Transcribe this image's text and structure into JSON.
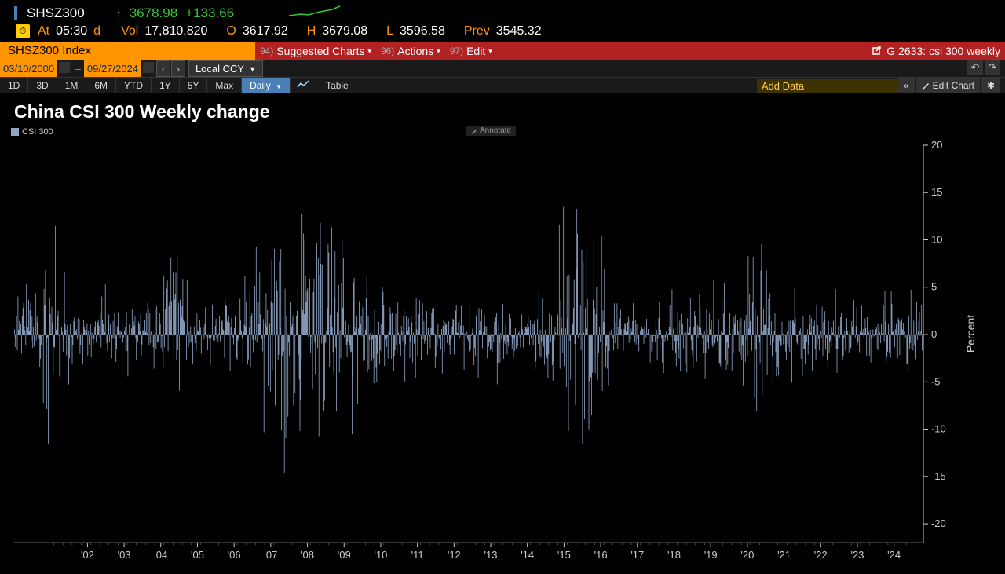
{
  "ticker": {
    "symbol": "SHSZ300",
    "arrow": "↑",
    "price": "3678.98",
    "change": "+133.66"
  },
  "quote": {
    "at_label": "At",
    "time": "05:30",
    "d": "d",
    "vol_label": "Vol",
    "vol": "17,810,820",
    "o_label": "O",
    "open": "3617.92",
    "h_label": "H",
    "high": "3679.08",
    "l_label": "L",
    "low": "3596.58",
    "prev_label": "Prev",
    "prev": "3545.32"
  },
  "index_bar": {
    "label": "SHSZ300 Index",
    "items": [
      {
        "num": "94)",
        "label": "Suggested Charts"
      },
      {
        "num": "96)",
        "label": "Actions"
      },
      {
        "num": "97)",
        "label": "Edit"
      }
    ],
    "right": "G 2633: csi 300 weekly"
  },
  "date_range": {
    "start": "03/10/2000",
    "end": "09/27/2024",
    "currency": "Local CCY"
  },
  "periods": [
    "1D",
    "3D",
    "1M",
    "6M",
    "YTD",
    "1Y",
    "5Y",
    "Max"
  ],
  "interval": "Daily",
  "table_label": "Table",
  "add_data": "Add Data",
  "edit_chart": "Edit Chart",
  "chart": {
    "title": "China CSI 300 Weekly change",
    "legend": "CSI 300",
    "annotate": "Annotate",
    "type": "bar",
    "y_label": "Percent",
    "ymin": -22,
    "ymax": 20,
    "ytick_step": 5,
    "yticks": [
      20,
      15,
      10,
      5,
      0,
      -5,
      -10,
      -15,
      -20
    ],
    "xtick_labels": [
      "'02",
      "'03",
      "'04",
      "'05",
      "'06",
      "'07",
      "'08",
      "'09",
      "'10",
      "'11",
      "'12",
      "'13",
      "'14",
      "'15",
      "'16",
      "'17",
      "'18",
      "'19",
      "'20",
      "'21",
      "'22",
      "'23",
      "'24"
    ],
    "bar_color": "#8ea5c7",
    "axis_color": "#cccccc",
    "axis_font_size": 13,
    "background": "#000000",
    "seed": 3,
    "bars_per_year": 52,
    "year_start": 2000,
    "year_end": 2024.8,
    "envelope": [
      {
        "t": 2000.2,
        "amp": 5
      },
      {
        "t": 2001.0,
        "amp": 12
      },
      {
        "t": 2001.5,
        "amp": 7
      },
      {
        "t": 2002.0,
        "amp": 4
      },
      {
        "t": 2003.0,
        "amp": 4
      },
      {
        "t": 2004.0,
        "amp": 5
      },
      {
        "t": 2004.3,
        "amp": 14
      },
      {
        "t": 2005.0,
        "amp": 4
      },
      {
        "t": 2006.0,
        "amp": 5
      },
      {
        "t": 2006.8,
        "amp": 10
      },
      {
        "t": 2007.2,
        "amp": 16
      },
      {
        "t": 2007.8,
        "amp": 12
      },
      {
        "t": 2008.3,
        "amp": 17
      },
      {
        "t": 2008.8,
        "amp": 15
      },
      {
        "t": 2009.3,
        "amp": 11
      },
      {
        "t": 2010.0,
        "amp": 7
      },
      {
        "t": 2011.0,
        "amp": 5
      },
      {
        "t": 2012.0,
        "amp": 4
      },
      {
        "t": 2013.0,
        "amp": 5
      },
      {
        "t": 2014.0,
        "amp": 4
      },
      {
        "t": 2014.8,
        "amp": 8
      },
      {
        "t": 2015.2,
        "amp": 14
      },
      {
        "t": 2015.55,
        "amp": 20
      },
      {
        "t": 2016.0,
        "amp": 10
      },
      {
        "t": 2016.5,
        "amp": 4
      },
      {
        "t": 2017.0,
        "amp": 3
      },
      {
        "t": 2018.0,
        "amp": 5
      },
      {
        "t": 2019.0,
        "amp": 5
      },
      {
        "t": 2020.1,
        "amp": 8
      },
      {
        "t": 2020.3,
        "amp": 12
      },
      {
        "t": 2021.0,
        "amp": 5
      },
      {
        "t": 2022.0,
        "amp": 5
      },
      {
        "t": 2023.0,
        "amp": 4
      },
      {
        "t": 2024.0,
        "amp": 5
      },
      {
        "t": 2024.7,
        "amp": 4
      }
    ],
    "last_spike": 15.0
  },
  "colors": {
    "orange": "#ff9500",
    "green": "#33cc33",
    "red_bar": "#b22222",
    "blue_active": "#4a7fb8",
    "bar": "#8ea5c7"
  }
}
